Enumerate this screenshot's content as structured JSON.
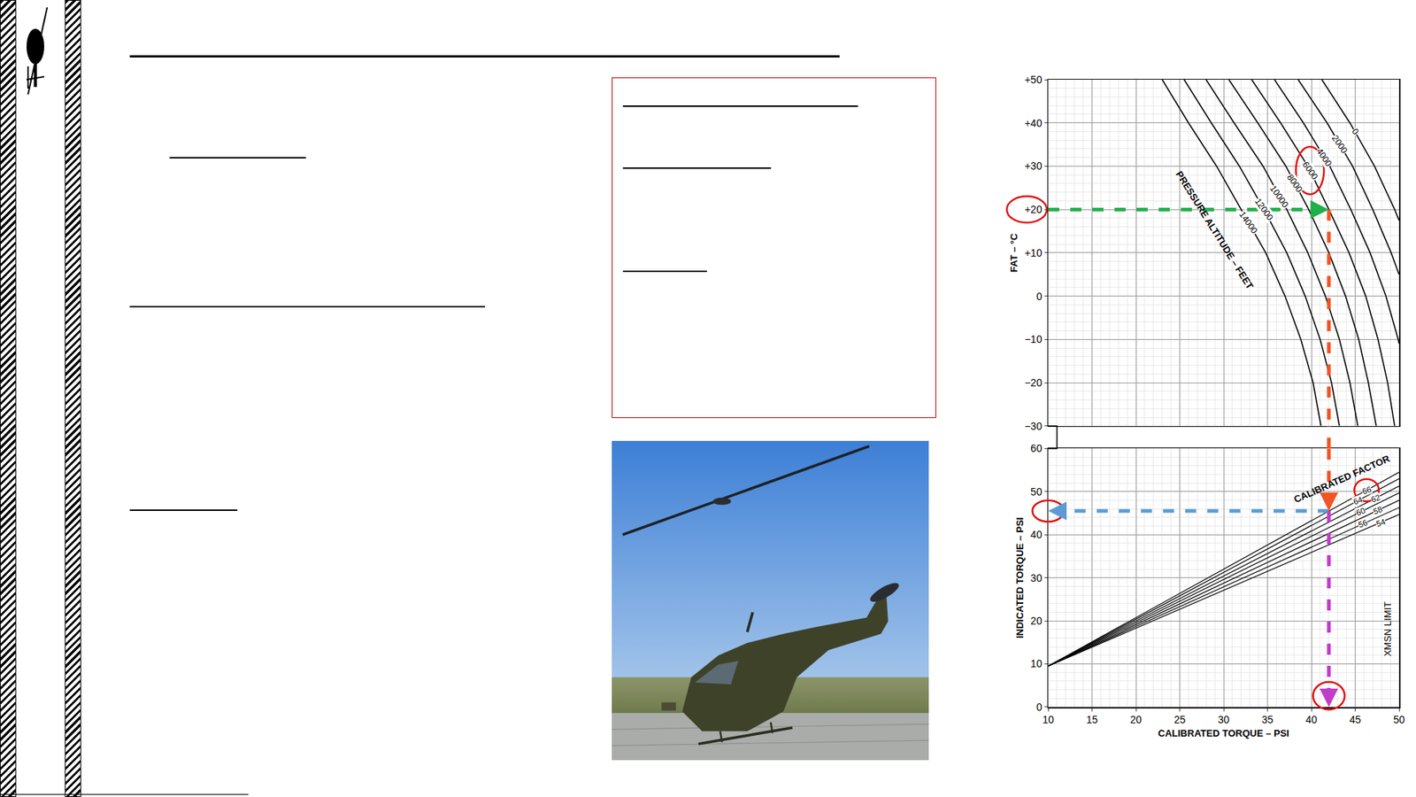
{
  "chart_data": {
    "type": "line",
    "x_label": "CALIBRATED TORQUE – PSI",
    "xlim": [
      10,
      50
    ],
    "xticks": [
      10,
      15,
      20,
      25,
      30,
      35,
      40,
      45,
      50
    ],
    "grid": true,
    "panels": [
      {
        "y_label": "FAT – °C",
        "ylim": [
          -30,
          50
        ],
        "yticks": [
          {
            "value": 50,
            "label": "+50"
          },
          {
            "value": 40,
            "label": "+40"
          },
          {
            "value": 30,
            "label": "+30"
          },
          {
            "value": 20,
            "label": "+20"
          },
          {
            "value": 10,
            "label": "+10"
          },
          0,
          {
            "value": -10,
            "label": "−10"
          },
          {
            "value": -20,
            "label": "−20"
          },
          {
            "value": -30,
            "label": "−30"
          }
        ],
        "series_label": "PRESSURE ALTITUDE – FEET",
        "color": "#000000",
        "series": [
          {
            "name": "0",
            "x": [
              41.2,
              44.4,
              47.2,
              49.5,
              50
            ],
            "values": [
              50,
              40,
              30,
              20,
              17.5
            ]
          },
          {
            "name": "2000",
            "x": [
              38.5,
              41.8,
              44.7,
              47.0,
              49.1,
              50
            ],
            "values": [
              50,
              40,
              30,
              20,
              10,
              5
            ]
          },
          {
            "name": "4000",
            "x": [
              35.8,
              39.1,
              42.1,
              44.5,
              46.7,
              48.5,
              49.9,
              50
            ],
            "values": [
              50,
              40,
              30,
              20,
              10,
              0,
              -10,
              -11
            ]
          },
          {
            "name": "6000",
            "x": [
              33.2,
              36.5,
              39.6,
              42.0,
              44.3,
              46.2,
              47.6,
              48.7,
              49.5
            ],
            "values": [
              50,
              40,
              30,
              20,
              10,
              0,
              -10,
              -20,
              -30
            ]
          },
          {
            "name": "8000",
            "x": [
              30.6,
              33.9,
              37.1,
              39.7,
              42.0,
              43.9,
              45.4,
              46.5,
              47.4
            ],
            "values": [
              50,
              40,
              30,
              20,
              10,
              0,
              -10,
              -20,
              -30
            ]
          },
          {
            "name": "10000",
            "x": [
              28.0,
              31.2,
              34.5,
              37.2,
              39.6,
              41.6,
              43.2,
              44.4,
              45.3
            ],
            "values": [
              50,
              40,
              30,
              20,
              10,
              0,
              -10,
              -20,
              -30
            ]
          },
          {
            "name": "12000",
            "x": [
              25.5,
              28.6,
              31.8,
              34.6,
              37.2,
              39.3,
              41.0,
              42.3,
              43.2
            ],
            "values": [
              50,
              40,
              30,
              20,
              10,
              0,
              -10,
              -20,
              -30
            ]
          },
          {
            "name": "14000",
            "x": [
              23.0,
              26.0,
              29.2,
              32.0,
              34.8,
              37.0,
              38.8,
              40.2,
              41.1
            ],
            "values": [
              50,
              40,
              30,
              20,
              10,
              0,
              -10,
              -20,
              -30
            ]
          }
        ]
      },
      {
        "y_label": "INDICATED TORQUE – PSI",
        "ylim": [
          0,
          60
        ],
        "yticks": [
          0,
          10,
          20,
          30,
          40,
          50,
          60
        ],
        "series_label": "CALIBRATED FACTOR",
        "color": "#000000",
        "series": [
          {
            "name": "66",
            "x": [
              10,
              50
            ],
            "values": [
              9.5,
              54.5
            ]
          },
          {
            "name": "64",
            "x": [
              10,
              50
            ],
            "values": [
              9.5,
              53.0
            ]
          },
          {
            "name": "62",
            "x": [
              10,
              50
            ],
            "values": [
              9.5,
              51.3
            ]
          },
          {
            "name": "60",
            "x": [
              10,
              50
            ],
            "values": [
              9.5,
              49.7
            ]
          },
          {
            "name": "58",
            "x": [
              10,
              50
            ],
            "values": [
              9.5,
              48.0
            ]
          },
          {
            "name": "56",
            "x": [
              10,
              50
            ],
            "values": [
              9.5,
              46.3
            ]
          },
          {
            "name": "54",
            "x": [
              10,
              50
            ],
            "values": [
              9.5,
              44.7
            ]
          }
        ]
      }
    ],
    "annotations": [
      "XMSN LIMIT"
    ],
    "example": {
      "fat": 20,
      "pressure_altitude": 6000,
      "calibrated_factor": 66,
      "indicated_torque": 45.5,
      "calibrated_torque": 42,
      "colors": [
        "#1fb04a",
        "#f05523",
        "#5b9bd5",
        "#c13cc9"
      ]
    }
  }
}
